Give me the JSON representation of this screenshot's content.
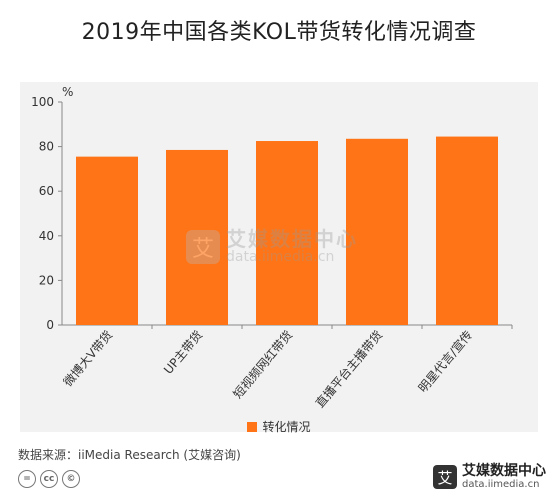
{
  "title": "2019年中国各类KOL带货转化情况调查",
  "chart_data": {
    "type": "bar",
    "categories": [
      "微博大V带货",
      "UP主带货",
      "短视频网红带货",
      "直播平台主播带货",
      "明星代言/宣传"
    ],
    "series": [
      {
        "name": "转化情况",
        "values": [
          75.5,
          78.5,
          82.5,
          83.5,
          84.5
        ]
      }
    ],
    "title": "2019年中国各类KOL带货转化情况调查",
    "unit_label": "%",
    "ylim": [
      0,
      100
    ],
    "yticks": [
      0,
      20,
      40,
      60,
      80,
      100
    ],
    "grid": false,
    "legend_position": "bottom-center",
    "bar_color": "#ff7416"
  },
  "source": "数据来源：iiMedia Research (艾媒咨询)",
  "watermark": {
    "brand": "艾媒数据中心",
    "url": "data.iimedia.cn",
    "logo_char": "艾"
  },
  "footer_brand": {
    "brand": "艾媒数据中心",
    "url": "data.iimedia.cn",
    "logo_char": "艾"
  },
  "license_icons": [
    "=",
    "cc",
    "©"
  ]
}
